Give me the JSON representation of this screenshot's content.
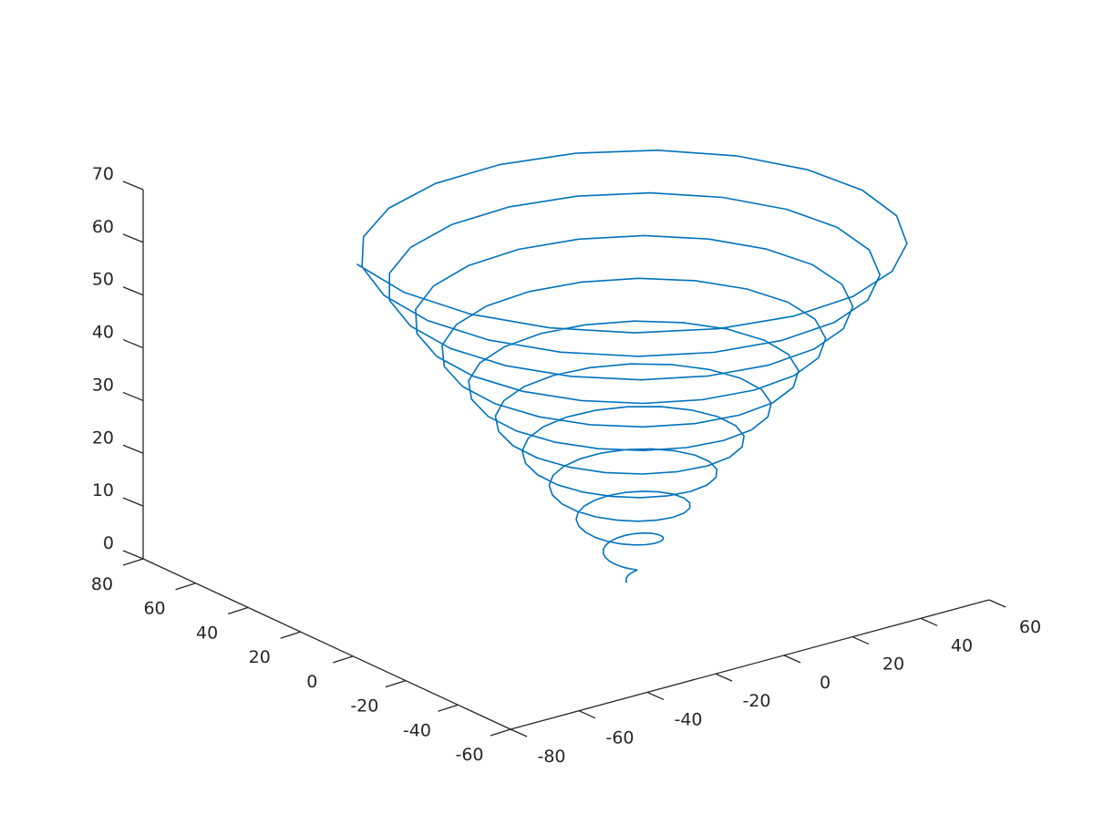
{
  "chart_data": {
    "type": "line",
    "projection": "3d",
    "title": "",
    "xlabel": "",
    "ylabel": "",
    "zlabel": "",
    "grid": false,
    "x_ticks": [
      "-80",
      "-60",
      "-40",
      "-20",
      "0",
      "20",
      "40",
      "60"
    ],
    "y_ticks": [
      "-60",
      "-40",
      "-20",
      "0",
      "20",
      "40",
      "60",
      "80"
    ],
    "z_ticks": [
      "0",
      "10",
      "20",
      "30",
      "40",
      "50",
      "60",
      "70"
    ],
    "xlim": [
      -80,
      60
    ],
    "ylim": [
      -60,
      80
    ],
    "zlim": [
      0,
      70
    ],
    "series": [
      {
        "color": "#0072bd",
        "curve": "conical helix: x = t*sin(t), y = t*cos(t), z = t",
        "t_range": [
          0,
          68
        ],
        "t_step": 0.3
      }
    ]
  }
}
